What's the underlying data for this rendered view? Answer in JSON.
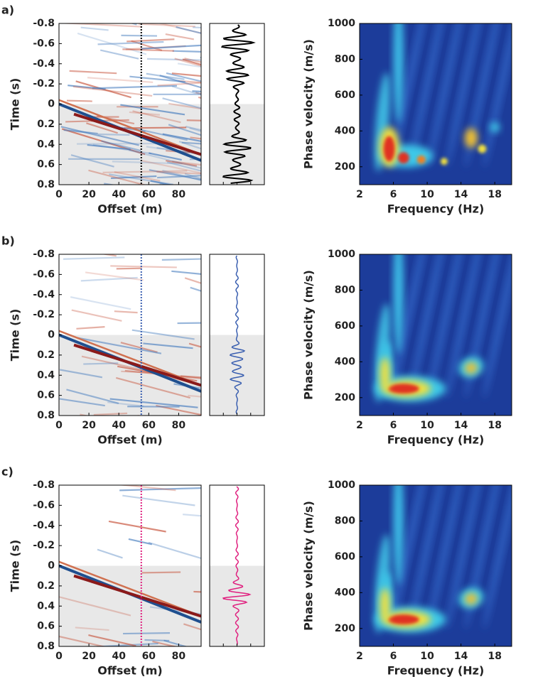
{
  "chart_data": [
    {
      "type": "gather",
      "label": "a)",
      "xlabel": "Offset (m)",
      "ylabel": "Time (s)",
      "xlim": [
        0,
        95
      ],
      "ylim": [
        -0.8,
        0.8
      ],
      "y_inverted": true,
      "xticks": [
        0,
        20,
        40,
        60,
        80
      ],
      "yticks": [
        -0.8,
        -0.6,
        -0.4,
        -0.2,
        0,
        0.2,
        0.4,
        0.6,
        0.8
      ],
      "trace_offset": 55,
      "color": "#000000"
    },
    {
      "type": "trace",
      "color": "#000000"
    },
    {
      "type": "dispersion",
      "xlabel": "Frequency (Hz)",
      "ylabel": "Phase velocity (m/s)",
      "xlim": [
        2,
        20
      ],
      "ylim": [
        100,
        1000
      ],
      "xticks": [
        2,
        6,
        10,
        14,
        18
      ],
      "yticks": [
        200,
        400,
        600,
        800,
        1000
      ]
    },
    {
      "type": "gather",
      "label": "b)",
      "xlabel": "Offset (m)",
      "ylabel": "Time (s)",
      "xlim": [
        0,
        95
      ],
      "ylim": [
        -0.8,
        0.8
      ],
      "y_inverted": true,
      "xticks": [
        0,
        20,
        40,
        60,
        80
      ],
      "yticks": [
        -0.8,
        -0.6,
        -0.4,
        -0.2,
        0,
        0.2,
        0.4,
        0.6,
        0.8
      ],
      "trace_offset": 55,
      "color": "#3a5fb0"
    },
    {
      "type": "trace",
      "color": "#3a5fb0"
    },
    {
      "type": "dispersion",
      "xlabel": "Frequency (Hz)",
      "ylabel": "Phase velocity (m/s)",
      "xlim": [
        2,
        20
      ],
      "ylim": [
        100,
        1000
      ],
      "xticks": [
        2,
        6,
        10,
        14,
        18
      ],
      "yticks": [
        200,
        400,
        600,
        800,
        1000
      ]
    },
    {
      "type": "gather",
      "label": "c)",
      "xlabel": "Offset (m)",
      "ylabel": "Time (s)",
      "xlim": [
        0,
        95
      ],
      "ylim": [
        -0.8,
        0.8
      ],
      "y_inverted": true,
      "xticks": [
        0,
        20,
        40,
        60,
        80
      ],
      "yticks": [
        -0.8,
        -0.6,
        -0.4,
        -0.2,
        0,
        0.2,
        0.4,
        0.6,
        0.8
      ],
      "trace_offset": 55,
      "color": "#e0207f"
    },
    {
      "type": "trace",
      "color": "#e0207f"
    },
    {
      "type": "dispersion",
      "xlabel": "Frequency (Hz)",
      "ylabel": "Phase velocity (m/s)",
      "xlim": [
        2,
        20
      ],
      "ylim": [
        100,
        1000
      ],
      "xticks": [
        2,
        6,
        10,
        14,
        18
      ],
      "yticks": [
        200,
        400,
        600,
        800,
        1000
      ]
    }
  ]
}
